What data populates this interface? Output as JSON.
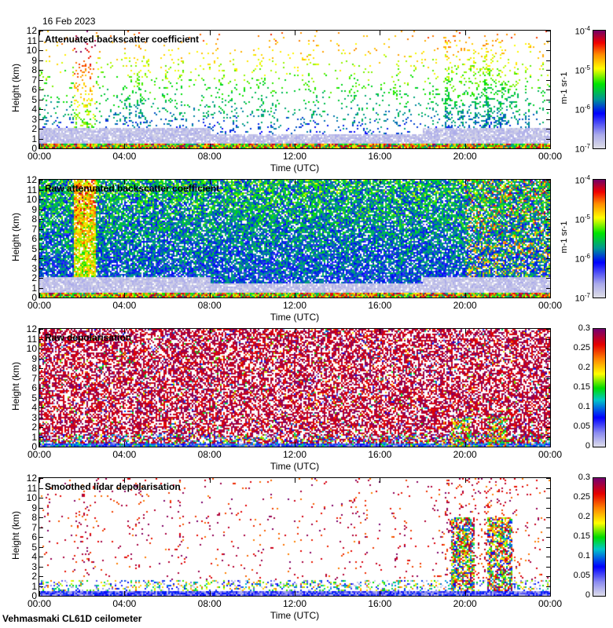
{
  "header": {
    "date": "16 Feb 2023"
  },
  "footer": {
    "site": "Vehmasmaki CL61D ceilometer"
  },
  "chart_data": [
    {
      "type": "heatmap",
      "title": "Attenuated backscatter coefficient",
      "xlabel": "Time (UTC)",
      "ylabel": "Height (km)",
      "xlim": [
        0,
        24
      ],
      "ylim": [
        0,
        12
      ],
      "xticks": [
        "00:00",
        "04:00",
        "08:00",
        "12:00",
        "16:00",
        "20:00",
        "00:00"
      ],
      "yticks": [
        "0",
        "1",
        "2",
        "3",
        "4",
        "5",
        "6",
        "7",
        "8",
        "9",
        "10",
        "11",
        "12"
      ],
      "colorbar": {
        "scale": "log",
        "range": [
          1e-07,
          0.0001
        ],
        "ticks": [
          "10-7",
          "10-6",
          "10-5",
          "10-4"
        ],
        "unit": "m-1 sr-1"
      },
      "kind": "backscatter"
    },
    {
      "type": "heatmap",
      "title": "Raw attenuated backscatter coefficient",
      "xlabel": "Time (UTC)",
      "ylabel": "Height (km)",
      "xlim": [
        0,
        24
      ],
      "ylim": [
        0,
        12
      ],
      "xticks": [
        "00:00",
        "04:00",
        "08:00",
        "12:00",
        "16:00",
        "20:00",
        "00:00"
      ],
      "yticks": [
        "0",
        "1",
        "2",
        "3",
        "4",
        "5",
        "6",
        "7",
        "8",
        "9",
        "10",
        "11",
        "12"
      ],
      "colorbar": {
        "scale": "log",
        "range": [
          1e-07,
          0.0001
        ],
        "ticks": [
          "10-7",
          "10-6",
          "10-5",
          "10-4"
        ],
        "unit": "m-1 sr-1"
      },
      "kind": "raw_backscatter"
    },
    {
      "type": "heatmap",
      "title": "Raw depolarisation",
      "xlabel": "Time (UTC)",
      "ylabel": "Height (km)",
      "xlim": [
        0,
        24
      ],
      "ylim": [
        0,
        12
      ],
      "xticks": [
        "00:00",
        "04:00",
        "08:00",
        "12:00",
        "16:00",
        "20:00",
        "00:00"
      ],
      "yticks": [
        "0",
        "1",
        "2",
        "3",
        "4",
        "5",
        "6",
        "7",
        "8",
        "9",
        "10",
        "11",
        "12"
      ],
      "colorbar": {
        "scale": "linear",
        "range": [
          0,
          0.3
        ],
        "ticks": [
          "0",
          "0.05",
          "0.1",
          "0.15",
          "0.2",
          "0.25",
          "0.3"
        ],
        "unit": ""
      },
      "kind": "raw_depol"
    },
    {
      "type": "heatmap",
      "title": "Smoothed lidar depolarisation",
      "xlabel": "Time (UTC)",
      "ylabel": "Height (km)",
      "xlim": [
        0,
        24
      ],
      "ylim": [
        0,
        12
      ],
      "xticks": [
        "00:00",
        "04:00",
        "08:00",
        "12:00",
        "16:00",
        "20:00",
        "00:00"
      ],
      "yticks": [
        "0",
        "1",
        "2",
        "3",
        "4",
        "5",
        "6",
        "7",
        "8",
        "9",
        "10",
        "11",
        "12"
      ],
      "colorbar": {
        "scale": "linear",
        "range": [
          0,
          0.3
        ],
        "ticks": [
          "0",
          "0.05",
          "0.1",
          "0.15",
          "0.2",
          "0.25",
          "0.3"
        ],
        "unit": ""
      },
      "kind": "smooth_depol"
    }
  ]
}
